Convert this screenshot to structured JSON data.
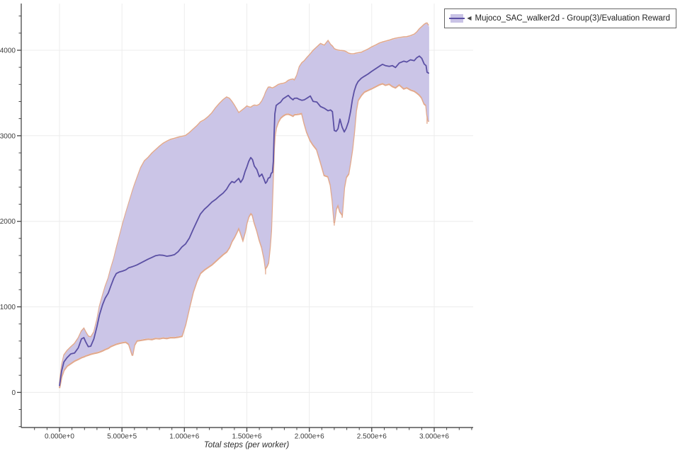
{
  "legend": {
    "collapse_icon": "◀",
    "label": "Mujoco_SAC_walker2d - Group(3)/Evaluation Reward"
  },
  "theme": {
    "grid_color": "#ececec",
    "spine_color": "#555555",
    "tick_color": "#444444",
    "tick_label_color": "#3d3d3d",
    "background": "#ffffff"
  },
  "axes": {
    "x": {
      "label": "Total steps (per worker)",
      "ticks": [
        {
          "value": 0,
          "label": "0.000e+0"
        },
        {
          "value": 500000,
          "label": "5.000e+5"
        },
        {
          "value": 1000000,
          "label": "1.000e+6"
        },
        {
          "value": 1500000,
          "label": "1.500e+6"
        },
        {
          "value": 2000000,
          "label": "2.000e+6"
        },
        {
          "value": 2500000,
          "label": "2.500e+6"
        },
        {
          "value": 3000000,
          "label": "3.000e+6"
        }
      ],
      "minor_step": 100000,
      "minor_min": -200000,
      "minor_max": 3300000
    },
    "y": {
      "label": "",
      "ticks": [
        {
          "value": 0,
          "label": "0"
        },
        {
          "value": 1000,
          "label": "1000"
        },
        {
          "value": 2000,
          "label": "2000"
        },
        {
          "value": 3000,
          "label": "3000"
        },
        {
          "value": 4000,
          "label": "4000"
        }
      ],
      "minor_step": 200,
      "minor_min": -400,
      "minor_max": 4400
    }
  },
  "chart_data": {
    "type": "line",
    "title": "",
    "xlabel": "Total steps (per worker)",
    "ylabel": "",
    "xlim": [
      -300000,
      3340000
    ],
    "ylim": [
      -410,
      4545
    ],
    "grid": true,
    "legend_position": "top-right",
    "fringe_color": "#e2a98c",
    "fringe_spikes": [
      [
        1650000,
        1458,
        1380
      ],
      [
        2200000,
        1990,
        1950
      ],
      [
        2263000,
        2085,
        2040
      ],
      [
        2943000,
        3250,
        3140
      ]
    ],
    "series": [
      {
        "name": "Mujoco_SAC_walker2d - Group(3)/Evaluation Reward",
        "color": "#5b50a4",
        "band_color": "#c9c3e6",
        "point_format": [
          "step",
          "min",
          "mean",
          "max"
        ],
        "points": [
          [
            0,
            60,
            80,
            95
          ],
          [
            17000,
            190,
            250,
            310
          ],
          [
            35000,
            265,
            355,
            430
          ],
          [
            60000,
            315,
            405,
            480
          ],
          [
            90000,
            345,
            450,
            525
          ],
          [
            120000,
            375,
            460,
            565
          ],
          [
            150000,
            395,
            520,
            630
          ],
          [
            176000,
            415,
            625,
            710
          ],
          [
            195000,
            425,
            640,
            742
          ],
          [
            210000,
            435,
            590,
            700
          ],
          [
            230000,
            445,
            535,
            650
          ],
          [
            250000,
            455,
            540,
            640
          ],
          [
            275000,
            465,
            625,
            700
          ],
          [
            300000,
            472,
            770,
            845
          ],
          [
            320000,
            480,
            905,
            1000
          ],
          [
            345000,
            495,
            1025,
            1130
          ],
          [
            365000,
            510,
            1100,
            1230
          ],
          [
            390000,
            525,
            1160,
            1330
          ],
          [
            410000,
            545,
            1240,
            1440
          ],
          [
            435000,
            560,
            1335,
            1560
          ],
          [
            455000,
            572,
            1390,
            1680
          ],
          [
            480000,
            582,
            1408,
            1820
          ],
          [
            505000,
            590,
            1418,
            1960
          ],
          [
            530000,
            596,
            1432,
            2090
          ],
          [
            555000,
            570,
            1458,
            2210
          ],
          [
            584000,
            440,
            1470,
            2350
          ],
          [
            600000,
            560,
            1478,
            2420
          ],
          [
            620000,
            610,
            1490,
            2500
          ],
          [
            650000,
            618,
            1512,
            2620
          ],
          [
            680000,
            625,
            1535,
            2700
          ],
          [
            710000,
            632,
            1558,
            2740
          ],
          [
            740000,
            628,
            1578,
            2790
          ],
          [
            770000,
            640,
            1598,
            2830
          ],
          [
            800000,
            636,
            1606,
            2870
          ],
          [
            830000,
            645,
            1602,
            2905
          ],
          [
            860000,
            640,
            1592,
            2930
          ],
          [
            890000,
            650,
            1598,
            2950
          ],
          [
            920000,
            648,
            1610,
            2962
          ],
          [
            950000,
            655,
            1645,
            2975
          ],
          [
            980000,
            665,
            1700,
            2985
          ],
          [
            1009000,
            800,
            1735,
            2995
          ],
          [
            1040000,
            1000,
            1805,
            3030
          ],
          [
            1070000,
            1180,
            1905,
            3070
          ],
          [
            1100000,
            1310,
            2000,
            3110
          ],
          [
            1128000,
            1400,
            2085,
            3155
          ],
          [
            1160000,
            1440,
            2140,
            3180
          ],
          [
            1190000,
            1470,
            2180,
            3215
          ],
          [
            1220000,
            1500,
            2225,
            3260
          ],
          [
            1250000,
            1540,
            2255,
            3320
          ],
          [
            1280000,
            1580,
            2295,
            3370
          ],
          [
            1310000,
            1620,
            2330,
            3415
          ],
          [
            1338000,
            1650,
            2375,
            3445
          ],
          [
            1360000,
            1700,
            2430,
            3430
          ],
          [
            1380000,
            1770,
            2465,
            3395
          ],
          [
            1400000,
            1820,
            2452,
            3350
          ],
          [
            1420000,
            1880,
            2480,
            3300
          ],
          [
            1435000,
            1930,
            2502,
            3262
          ],
          [
            1450000,
            1870,
            2455,
            3280
          ],
          [
            1468000,
            1790,
            2495,
            3300
          ],
          [
            1485000,
            1880,
            2580,
            3320
          ],
          [
            1500000,
            1990,
            2635,
            3340
          ],
          [
            1515000,
            2060,
            2700,
            3330
          ],
          [
            1531000,
            2100,
            2745,
            3325
          ],
          [
            1545000,
            2080,
            2722,
            3340
          ],
          [
            1560000,
            1990,
            2645,
            3350
          ],
          [
            1580000,
            1900,
            2605,
            3345
          ],
          [
            1600000,
            1790,
            2522,
            3360
          ],
          [
            1620000,
            1700,
            2552,
            3400
          ],
          [
            1640000,
            1560,
            2482,
            3460
          ],
          [
            1650000,
            1458,
            2445,
            3500
          ],
          [
            1660000,
            1480,
            2462,
            3530
          ],
          [
            1672000,
            1520,
            2505,
            3560
          ],
          [
            1685000,
            1700,
            2512,
            3562
          ],
          [
            1695000,
            1900,
            2562,
            3555
          ],
          [
            1705000,
            2300,
            2572,
            3550
          ],
          [
            1712000,
            2600,
            2700,
            3555
          ],
          [
            1718000,
            2850,
            3000,
            3560
          ],
          [
            1724000,
            3000,
            3255,
            3565
          ],
          [
            1735000,
            3100,
            3355,
            3575
          ],
          [
            1750000,
            3165,
            3372,
            3590
          ],
          [
            1770000,
            3215,
            3392,
            3600
          ],
          [
            1790000,
            3240,
            3432,
            3605
          ],
          [
            1810000,
            3258,
            3452,
            3615
          ],
          [
            1832000,
            3262,
            3472,
            3640
          ],
          [
            1850000,
            3252,
            3442,
            3650
          ],
          [
            1870000,
            3238,
            3420,
            3655
          ],
          [
            1880000,
            3255,
            3438,
            3642
          ],
          [
            1900000,
            3258,
            3440,
            3700
          ],
          [
            1920000,
            3262,
            3425,
            3800
          ],
          [
            1940000,
            3270,
            3415,
            3845
          ],
          [
            1960000,
            3150,
            3420,
            3870
          ],
          [
            1980000,
            3050,
            3438,
            3905
          ],
          [
            2008000,
            2950,
            3465,
            3950
          ],
          [
            2030000,
            2900,
            3402,
            3990
          ],
          [
            2060000,
            2845,
            3395,
            4030
          ],
          [
            2090000,
            2700,
            3342,
            4070
          ],
          [
            2120000,
            2545,
            3322,
            4050
          ],
          [
            2150000,
            2530,
            3292,
            4105
          ],
          [
            2170000,
            2430,
            3302,
            4060
          ],
          [
            2185000,
            2250,
            3282,
            4040
          ],
          [
            2200000,
            1990,
            3062,
            4010
          ],
          [
            2215000,
            2150,
            3052,
            4000
          ],
          [
            2230000,
            2200,
            3082,
            3995
          ],
          [
            2245000,
            2120,
            3195,
            3990
          ],
          [
            2263000,
            2085,
            3102,
            3988
          ],
          [
            2280000,
            2400,
            3045,
            3985
          ],
          [
            2295000,
            2520,
            3085,
            3975
          ],
          [
            2314000,
            2560,
            3165,
            3958
          ],
          [
            2330000,
            2705,
            3282,
            3952
          ],
          [
            2345000,
            2850,
            3422,
            3950
          ],
          [
            2360000,
            3050,
            3522,
            3952
          ],
          [
            2375000,
            3300,
            3592,
            3958
          ],
          [
            2390000,
            3420,
            3632,
            3962
          ],
          [
            2416000,
            3480,
            3672,
            3968
          ],
          [
            2440000,
            3520,
            3695,
            3985
          ],
          [
            2470000,
            3540,
            3722,
            4005
          ],
          [
            2501000,
            3560,
            3755,
            4032
          ],
          [
            2530000,
            3582,
            3782,
            4052
          ],
          [
            2560000,
            3605,
            3812,
            4075
          ],
          [
            2586000,
            3618,
            3835,
            4088
          ],
          [
            2610000,
            3600,
            3820,
            4098
          ],
          [
            2640000,
            3612,
            3812,
            4110
          ],
          [
            2665000,
            3585,
            3820,
            4122
          ],
          [
            2690000,
            3570,
            3798,
            4132
          ],
          [
            2720000,
            3605,
            3850,
            4140
          ],
          [
            2756000,
            3558,
            3872,
            4148
          ],
          [
            2780000,
            3570,
            3862,
            4150
          ],
          [
            2810000,
            3545,
            3888,
            4162
          ],
          [
            2840000,
            3530,
            3878,
            4180
          ],
          [
            2860000,
            3510,
            3912,
            4205
          ],
          [
            2881000,
            3485,
            3932,
            4242
          ],
          [
            2900000,
            3450,
            3905,
            4268
          ],
          [
            2920000,
            3380,
            3838,
            4295
          ],
          [
            2935000,
            3362,
            3820,
            4308
          ],
          [
            2943000,
            3250,
            3742,
            4310
          ],
          [
            2955000,
            3175,
            3732,
            4280
          ]
        ]
      }
    ]
  }
}
